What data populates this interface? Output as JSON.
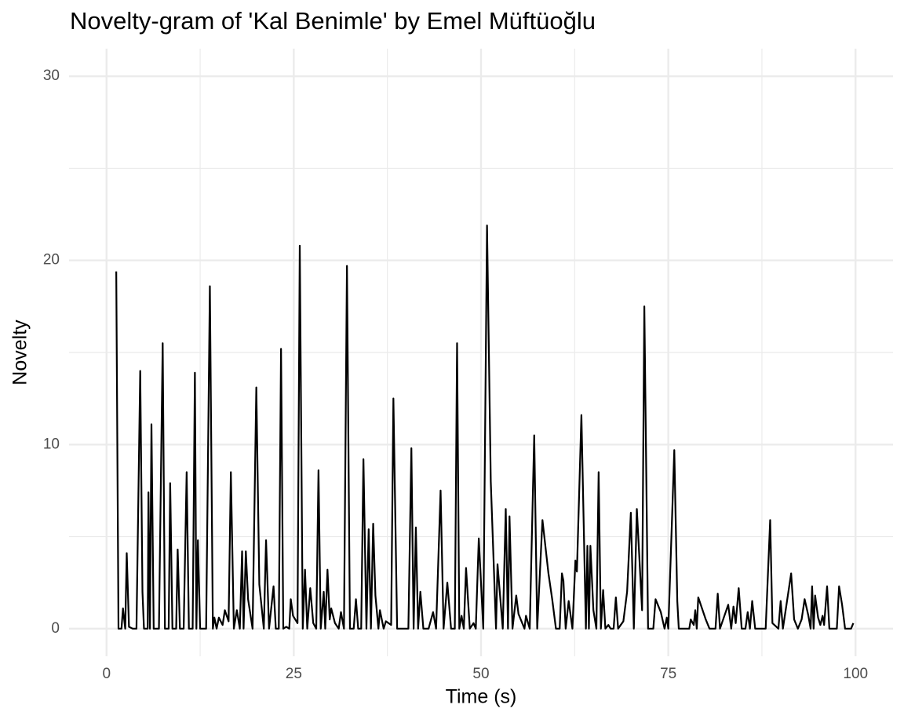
{
  "chart_data": {
    "type": "line",
    "title": "Novelty-gram of 'Kal Benimle' by Emel Müftüoğlu",
    "xlabel": "Time (s)",
    "ylabel": "Novelty",
    "color": "#000000",
    "grid": true,
    "xlim": [
      -5,
      105
    ],
    "ylim": [
      -1.5,
      31.5
    ],
    "xticks": [
      0,
      25,
      50,
      75,
      100
    ],
    "yticks": [
      0,
      10,
      20,
      30
    ],
    "xminor": [
      12.5,
      37.5,
      62.5,
      87.5
    ],
    "yminor": [
      5,
      15,
      25
    ],
    "x": [
      1.3,
      1.6,
      2.0,
      2.2,
      2.5,
      2.7,
      3.0,
      3.5,
      4.0,
      4.5,
      4.8,
      5.0,
      5.5,
      5.6,
      5.8,
      6.0,
      6.3,
      7.0,
      7.5,
      7.8,
      8.3,
      8.5,
      8.8,
      9.3,
      9.5,
      9.8,
      10.3,
      10.7,
      11.0,
      11.5,
      11.8,
      12.0,
      12.2,
      12.5,
      13.3,
      13.8,
      14.2,
      14.4,
      14.7,
      15.0,
      15.5,
      15.8,
      16.3,
      16.6,
      17.0,
      17.4,
      17.8,
      18.1,
      18.3,
      18.6,
      18.9,
      19.5,
      20.0,
      20.4,
      21.0,
      21.3,
      21.7,
      22.3,
      22.6,
      23.0,
      23.3,
      23.6,
      24.0,
      24.4,
      24.6,
      24.9,
      25.5,
      25.8,
      26.2,
      26.5,
      26.8,
      27.2,
      27.6,
      28.0,
      28.3,
      28.6,
      29.0,
      29.2,
      29.5,
      29.8,
      30.0,
      30.5,
      31.0,
      31.3,
      31.7,
      32.1,
      32.5,
      33.0,
      33.3,
      33.6,
      34.0,
      34.3,
      34.7,
      35.0,
      35.3,
      35.6,
      35.9,
      36.3,
      36.5,
      37.0,
      37.3,
      38.0,
      38.3,
      38.8,
      39.5,
      40.3,
      40.7,
      41.0,
      41.3,
      41.6,
      41.9,
      42.3,
      43.0,
      43.6,
      44.0,
      44.6,
      45.0,
      45.5,
      46.0,
      46.5,
      46.8,
      47.1,
      47.4,
      47.7,
      48.0,
      48.5,
      49.0,
      49.3,
      49.7,
      50.3,
      50.8,
      51.3,
      52.0,
      52.2,
      52.9,
      53.3,
      53.6,
      53.8,
      54.2,
      54.7,
      55.0,
      55.8,
      56.0,
      56.5,
      57.1,
      57.5,
      58.2,
      59.0,
      59.5,
      60.0,
      60.5,
      60.8,
      61.0,
      61.3,
      61.7,
      62.2,
      62.6,
      62.8,
      63.4,
      64.0,
      64.2,
      64.4,
      64.6,
      65.0,
      65.4,
      65.7,
      66.0,
      66.3,
      66.6,
      67.0,
      67.3,
      67.7,
      68.0,
      68.3,
      69.0,
      69.5,
      70.0,
      70.4,
      70.8,
      71.5,
      71.8,
      72.3,
      73.0,
      73.3,
      74.0,
      74.5,
      74.8,
      75.0,
      75.5,
      75.8,
      76.2,
      76.4,
      77.0,
      77.8,
      78.0,
      78.4,
      78.6,
      78.8,
      79.0,
      80.0,
      80.5,
      81.3,
      81.6,
      81.9,
      83.0,
      83.4,
      83.7,
      84.0,
      84.4,
      84.8,
      85.3,
      85.6,
      85.9,
      86.2,
      86.6,
      88.0,
      88.6,
      88.9,
      89.7,
      90.0,
      90.3,
      91.4,
      91.8,
      92.3,
      92.8,
      93.2,
      93.7,
      94.0,
      94.2,
      94.4,
      94.6,
      95.0,
      95.3,
      95.6,
      95.8,
      96.2,
      96.5,
      97.5,
      97.8,
      98.2,
      98.6,
      99.4,
      99.7
    ],
    "values": [
      19.4,
      0,
      0,
      1.1,
      0,
      4.1,
      0.1,
      0,
      0,
      14,
      2,
      0,
      0,
      7.4,
      0,
      11.1,
      0,
      0,
      15.5,
      0,
      0,
      7.9,
      0,
      0,
      4.3,
      0,
      0,
      8.5,
      0,
      0,
      13.9,
      0,
      4.8,
      0,
      0,
      18.6,
      0,
      0.6,
      0,
      0.6,
      0.2,
      1.0,
      0.4,
      8.5,
      0,
      1.0,
      0,
      4.2,
      0,
      4.2,
      1.6,
      0,
      13.1,
      2.4,
      0,
      4.8,
      0,
      2.3,
      0,
      0,
      15.2,
      0,
      0.1,
      0,
      1.6,
      0.7,
      0.3,
      20.8,
      0,
      3.2,
      0,
      2.2,
      0.3,
      0,
      8.6,
      0,
      2.0,
      0,
      3.2,
      0.5,
      1.1,
      0.3,
      0,
      0.9,
      0,
      19.7,
      0,
      0,
      1.6,
      0,
      0,
      9.2,
      0,
      5.4,
      0,
      5.7,
      1.8,
      0,
      1,
      0,
      0.4,
      0.2,
      12.5,
      0,
      0,
      0,
      9.8,
      0,
      5.5,
      0,
      2.0,
      0,
      0,
      0.9,
      0,
      7.5,
      0,
      2.5,
      0,
      0,
      15.5,
      0,
      0.7,
      0,
      3.3,
      0,
      0.3,
      0,
      4.9,
      0,
      21.9,
      8,
      0,
      3.5,
      0,
      6.5,
      0,
      6.1,
      0,
      1.8,
      0.8,
      0,
      0.7,
      0,
      10.5,
      0,
      5.9,
      3.0,
      1.6,
      0,
      0,
      3.0,
      2.6,
      0,
      1.5,
      0,
      3.7,
      3.1,
      11.6,
      0,
      4.5,
      0,
      4.5,
      1,
      0,
      8.5,
      0,
      2.1,
      0,
      0.2,
      0,
      0,
      1.7,
      0,
      0.4,
      2.0,
      6.3,
      0,
      6.5,
      1,
      17.5,
      0,
      0,
      1.6,
      0.9,
      0,
      0.6,
      0,
      6,
      9.7,
      1.5,
      0,
      0,
      0,
      0.5,
      0.2,
      1.0,
      0,
      1.7,
      0.5,
      0,
      0,
      1.9,
      0,
      1.3,
      0,
      1.2,
      0.3,
      2.2,
      0,
      0,
      0.9,
      0,
      1.5,
      0,
      0,
      5.9,
      0.3,
      0,
      1.5,
      0,
      3.0,
      0.5,
      0,
      0.5,
      1.6,
      0.7,
      0,
      2.3,
      0,
      1.8,
      0.6,
      0.2,
      0.7,
      0.2,
      2.3,
      0,
      0,
      2.3,
      1.3,
      0,
      0,
      0.3
    ]
  }
}
